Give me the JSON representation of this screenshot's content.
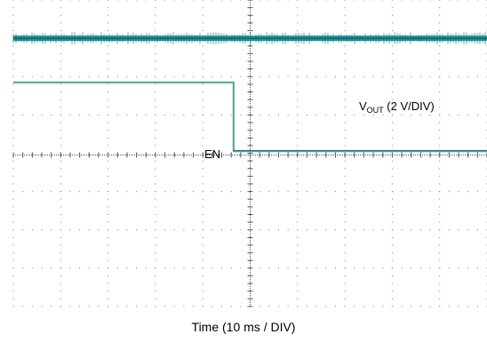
{
  "chart_data": {
    "type": "line",
    "title": "",
    "xlabel": "Time (10 ms / DIV)",
    "ylabel": "",
    "grid": true,
    "x_divisions": 10,
    "y_divisions": 8,
    "xlim": [
      0,
      10
    ],
    "ylim": [
      0,
      8
    ],
    "series": [
      {
        "name": "VOUT (2 V/DIV)",
        "color": "#1fa3a0",
        "noisy": true,
        "x": [
          0,
          10
        ],
        "y": [
          7.0,
          7.0
        ]
      },
      {
        "name": "EN",
        "color": "#4da68a",
        "x": [
          0,
          4.65,
          4.65,
          10
        ],
        "y": [
          5.85,
          5.85,
          4.05,
          4.05
        ]
      }
    ],
    "annotations": {
      "vout_main": "V",
      "vout_sub": "OUT",
      "vout_rest": " (2 V/DIV)",
      "en": "EN"
    }
  }
}
